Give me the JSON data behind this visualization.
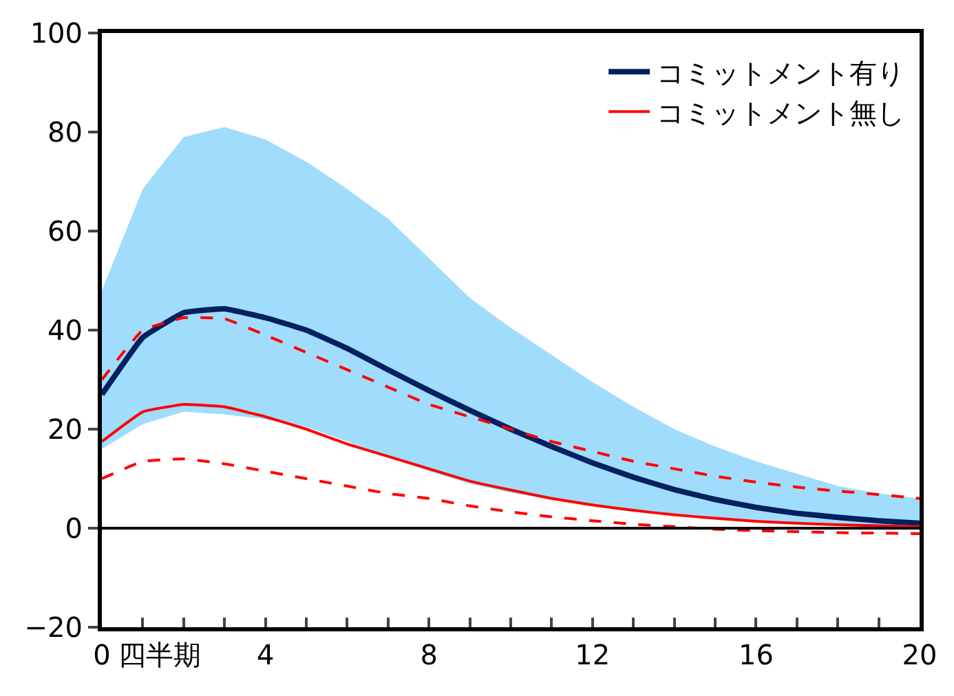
{
  "chart_data": {
    "type": "line",
    "xlabel": "四半期",
    "x": [
      0,
      1,
      2,
      3,
      4,
      5,
      6,
      7,
      8,
      9,
      10,
      11,
      12,
      13,
      14,
      15,
      16,
      17,
      18,
      19,
      20
    ],
    "series": [
      {
        "name": "コミットメント有り",
        "color": "#002060",
        "values": [
          27,
          38.5,
          43.5,
          44.3,
          42.5,
          40,
          36.3,
          32,
          27.8,
          23.8,
          20,
          16.5,
          13.2,
          10.3,
          7.8,
          5.8,
          4.2,
          3,
          2.2,
          1.5,
          1
        ],
        "lower": [
          16,
          21,
          23.5,
          23,
          22,
          20.5,
          17.5,
          14.5,
          11.5,
          9,
          7.2,
          5.8,
          4.5,
          3.5,
          2.5,
          1.8,
          1.2,
          0.8,
          0.5,
          0.3,
          0.2
        ],
        "upper": [
          48,
          68.5,
          79,
          81,
          78.5,
          74,
          68.5,
          62.5,
          54.5,
          46.5,
          40.5,
          35,
          29.5,
          24.5,
          20,
          16.5,
          13.5,
          11,
          8.5,
          7,
          6
        ]
      },
      {
        "name": "コミットメント無し",
        "color": "#ff0000",
        "values": [
          17.5,
          23.5,
          25,
          24.5,
          22.5,
          20,
          17,
          14.5,
          12,
          9.5,
          7.7,
          6,
          4.7,
          3.6,
          2.7,
          2,
          1.4,
          1,
          0.7,
          0.5,
          0.3
        ]
      },
      {
        "color": "#ff0000",
        "line_style": "dashed",
        "values": [
          30,
          40,
          42.5,
          42.3,
          39,
          35.5,
          32,
          28.5,
          25,
          22.5,
          20,
          17.5,
          15.5,
          13.5,
          12,
          10.5,
          9.3,
          8.3,
          7.5,
          6.8,
          6
        ]
      },
      {
        "color": "#ff0000",
        "line_style": "dashed",
        "values": [
          10,
          13.5,
          14,
          13,
          11.5,
          10,
          8.5,
          7,
          6,
          4.5,
          3.3,
          2.3,
          1.5,
          0.8,
          0.3,
          -0.2,
          -0.5,
          -0.7,
          -0.9,
          -1,
          -1.1
        ]
      }
    ],
    "xlim": [
      0,
      20
    ],
    "xticks": [
      0,
      {
        "value": 1,
        "label": null
      },
      {
        "value": 2,
        "label": null
      },
      {
        "value": 3,
        "label": null
      },
      4,
      {
        "value": 5,
        "label": null
      },
      {
        "value": 6,
        "label": null
      },
      {
        "value": 7,
        "label": null
      },
      8,
      {
        "value": 9,
        "label": null
      },
      {
        "value": 10,
        "label": null
      },
      {
        "value": 11,
        "label": null
      },
      12,
      {
        "value": 13,
        "label": null
      },
      {
        "value": 14,
        "label": null
      },
      {
        "value": 15,
        "label": null
      },
      16,
      {
        "value": 17,
        "label": null
      },
      {
        "value": 18,
        "label": null
      },
      {
        "value": 19,
        "label": null
      },
      20
    ],
    "ylim": [
      -20,
      100
    ],
    "yticks": [
      -20,
      0,
      20,
      40,
      60,
      80,
      100
    ],
    "ref_lines": [
      {
        "axis": "y",
        "value": 0,
        "color": "#000000"
      }
    ],
    "legend": "top right"
  }
}
